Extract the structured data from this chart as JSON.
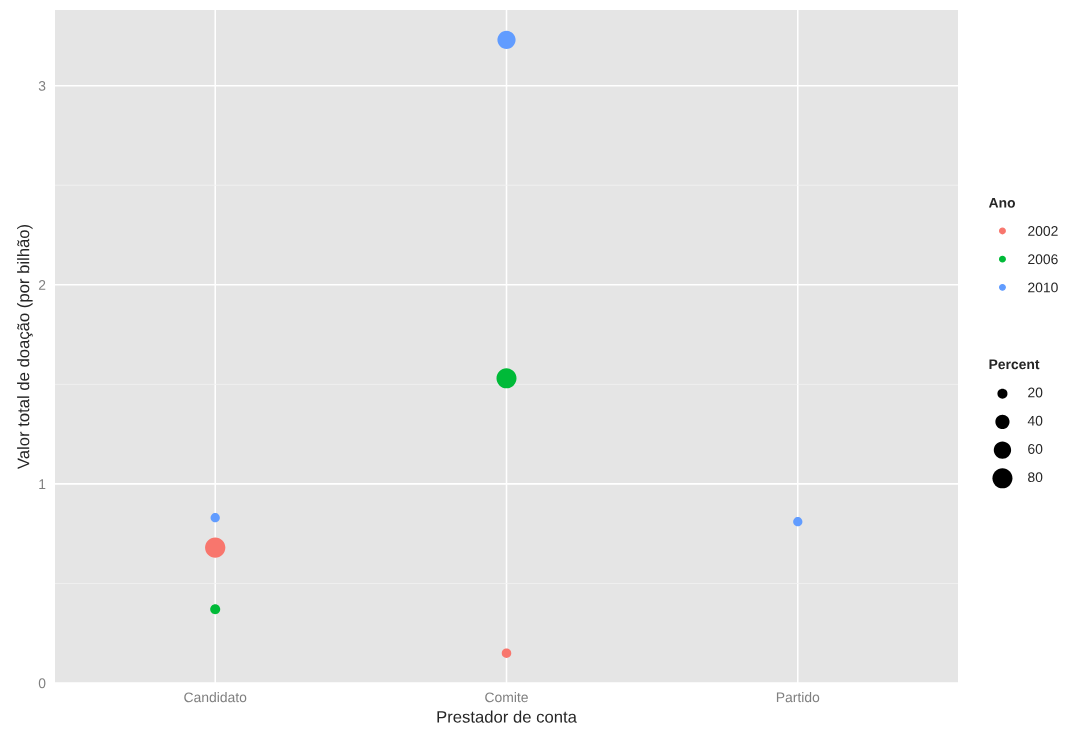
{
  "chart_data": {
    "type": "bubble",
    "xlabel": "Prestador de conta",
    "ylabel": "Valor total de doação (por bilhão)",
    "categories": [
      "Candidato",
      "Comite",
      "Partido"
    ],
    "series": [
      {
        "name": "2002",
        "color": "#f8766d",
        "x": [
          "Candidato",
          "Comite"
        ],
        "values": [
          0.68,
          0.15
        ],
        "sizes": [
          82,
          18
        ]
      },
      {
        "name": "2006",
        "color": "#00ba38",
        "x": [
          "Candidato",
          "Comite"
        ],
        "values": [
          0.37,
          1.53
        ],
        "sizes": [
          20,
          80
        ]
      },
      {
        "name": "2010",
        "color": "#619cff",
        "x": [
          "Candidato",
          "Comite",
          "Partido"
        ],
        "values": [
          0.83,
          3.23,
          0.81
        ],
        "sizes": [
          17,
          66,
          17
        ]
      }
    ],
    "size_legend": [
      20,
      40,
      60,
      80
    ],
    "legend_title": [
      "Ano",
      "Percent"
    ],
    "ylim": [
      0,
      3.38
    ],
    "yticks": [
      0,
      1,
      2,
      3
    ],
    "grid": true,
    "legend": "right",
    "marker": "circle"
  }
}
